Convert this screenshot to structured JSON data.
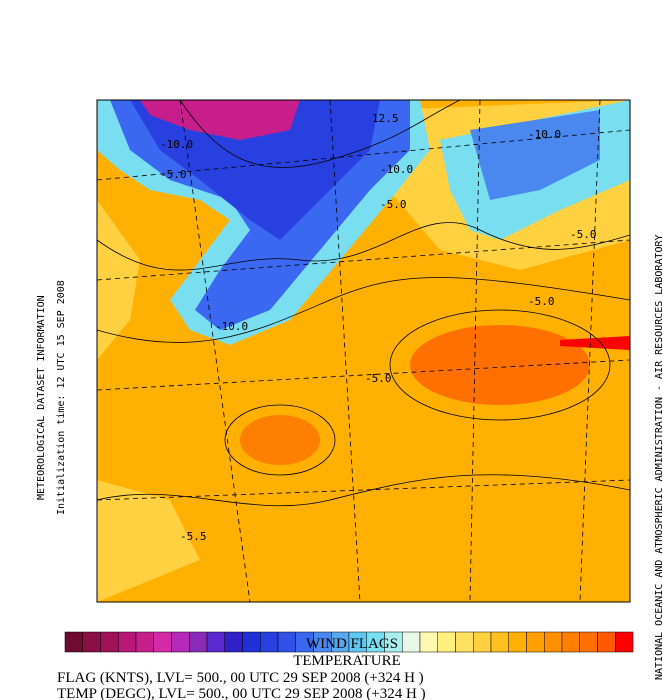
{
  "side_left": {
    "title": "METEOROLOGICAL DATASET INFORMATION",
    "init": "Initialization time: 12 UTC 15 SEP 2008"
  },
  "side_right": "NATIONAL OCEANIC AND ATMOSPHERIC ADMINISTRATION - AIR RESOURCES LABORATORY",
  "map": {
    "contour_labels": [
      "12.5",
      "-10.0",
      "-10.0",
      "-10.0",
      "-5.0",
      "-10.0",
      "-5.0",
      "-5.0",
      "-5.0",
      "-5.0",
      "-5.5"
    ]
  },
  "colorbar": {
    "colors": [
      "#6e0b2e",
      "#8a0f45",
      "#a0115a",
      "#b81875",
      "#c81e8c",
      "#d42aa8",
      "#b52ab8",
      "#8a2ab8",
      "#5a2ad0",
      "#3020c8",
      "#2030d8",
      "#2840e0",
      "#3050e8",
      "#3a68f0",
      "#4a88f0",
      "#58a8f0",
      "#60c8f0",
      "#78def0",
      "#a8eef0",
      "#e8f8e8",
      "#fff8b0",
      "#fff080",
      "#ffe060",
      "#ffd040",
      "#ffc020",
      "#ffb000",
      "#ffa000",
      "#ff9000",
      "#ff8000",
      "#ff7000",
      "#ff5a00",
      "#ff0000"
    ]
  },
  "footer": {
    "title1": "WIND FLAGS",
    "title2": "TEMPERATURE",
    "line1": "FLAG (KNTS),  LVL= 500., 00 UTC 29 SEP 2008 (+324 H )",
    "line2": "TEMP (DEGC),  LVL= 500., 00 UTC 29 SEP 2008 (+324 H )"
  }
}
